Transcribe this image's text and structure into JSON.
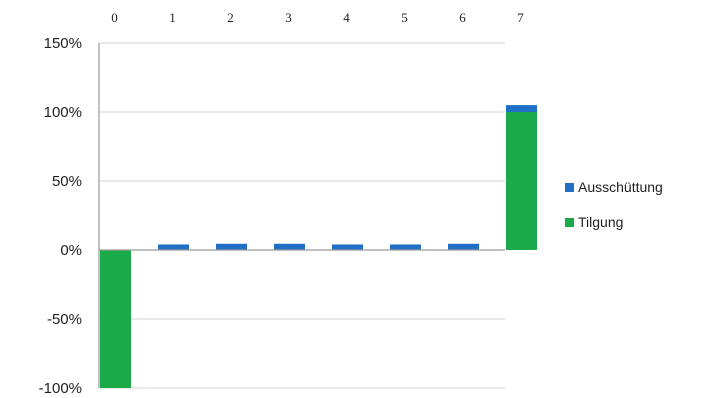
{
  "chart_data": {
    "type": "bar",
    "stacked": true,
    "categories": [
      "0",
      "1",
      "2",
      "3",
      "4",
      "5",
      "6",
      "7"
    ],
    "series": [
      {
        "name": "Tilgung",
        "color": "#1aaa4a",
        "values": [
          -100,
          0,
          0,
          0,
          0,
          0,
          0,
          100
        ]
      },
      {
        "name": "Ausschüttung",
        "color": "#1f6fc6",
        "values": [
          0,
          4,
          4.5,
          4.5,
          4,
          4,
          4.5,
          5
        ]
      }
    ],
    "yticks": [
      150,
      100,
      50,
      0,
      -50,
      -100
    ],
    "ytick_labels": [
      "150%",
      "100%",
      "50%",
      "0%",
      "-50%",
      "-100%"
    ],
    "ylim": [
      -100,
      150
    ],
    "grid": true,
    "legend_position": "right",
    "title": "",
    "xlabel": "",
    "ylabel": ""
  }
}
